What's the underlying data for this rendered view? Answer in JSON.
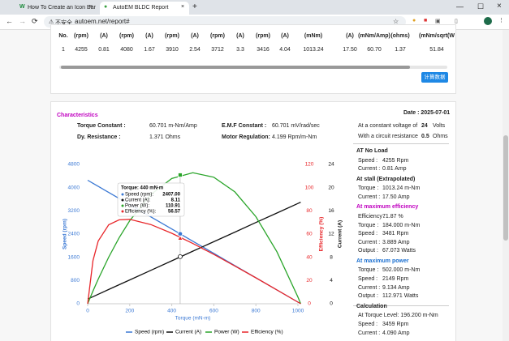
{
  "browser": {
    "tabs": [
      "How To Create an Icon Bar",
      "AutoEM BLDC Report"
    ],
    "security": "不安全",
    "url": "autoem.net/report#"
  },
  "table": {
    "header": [
      "No.",
      "(rpm)",
      "(A)",
      "(rpm)",
      "(A)",
      "(rpm)",
      "(A)",
      "(rpm)",
      "(A)",
      "(rpm)",
      "(A)",
      "(mNm)",
      "(A)",
      "(mNm/Amp)",
      "(ohms)",
      "(mNm/sqrt(W"
    ],
    "rows": [
      [
        "1",
        "4255",
        "0.81",
        "4080",
        "1.67",
        "3910",
        "2.54",
        "3712",
        "3.3",
        "3416",
        "4.04",
        "1013.24",
        "17.50",
        "60.70",
        "1.37",
        "51.84"
      ]
    ]
  },
  "button": "计算数据",
  "characteristics": {
    "title": "Characteristics",
    "date": "Date : 2025-07-01",
    "props": [
      [
        "Torque Constant :",
        "60.701 m-Nm/Amp",
        "E.M.F Constant :",
        "60.701 mV/rad/sec"
      ],
      [
        "Dy. Resistance :",
        "1.371 Ohms",
        "Motor Regulation:",
        "4.199 Rpm/m-Nm"
      ]
    ]
  },
  "summary": {
    "voltage": [
      "At a constant voltage of",
      "24",
      "Volts"
    ],
    "resistance": [
      "With a circuit resistance",
      "0.5",
      "Ohms"
    ],
    "sections": [
      {
        "title": "AT No Load",
        "color": "#222222",
        "rows": [
          [
            "Speed :",
            "4255 Rpm"
          ],
          [
            "Current :",
            "0.81 Amp"
          ]
        ]
      },
      {
        "title": "At stall (Extrapolated)",
        "color": "#222222",
        "rows": [
          [
            "Torque :",
            "1013.24 m-Nm"
          ],
          [
            "Current :",
            "17.50 Amp"
          ]
        ]
      },
      {
        "title": "At maximum efficiency",
        "color": "#c000c0",
        "rows": [
          [
            "Efficiency :",
            "71.87 %"
          ],
          [
            "Torque :",
            "184.000 m-Nm"
          ],
          [
            "Speed :",
            "3481 Rpm"
          ],
          [
            "Current :",
            "3.889 Amp"
          ],
          [
            "Output :",
            "67.073 Watts"
          ]
        ]
      },
      {
        "title": "At maximum power",
        "color": "#1a6fd0",
        "rows": [
          [
            "Torque :",
            "502.000 m-Nm"
          ],
          [
            "Speed :",
            "2149 Rpm"
          ],
          [
            "Current :",
            "9.134 Amp"
          ],
          [
            "Output :",
            "112.971 Watts"
          ]
        ]
      },
      {
        "title": "Calculation",
        "color": "#222222",
        "note": "At Torque Level: 196.200 m-Nm",
        "rows": [
          [
            "Speed :",
            "3459 Rpm"
          ],
          [
            "Current :",
            "4.090 Amp"
          ]
        ]
      }
    ]
  },
  "chart_data": {
    "type": "line",
    "xlabel": "Torque (mN-m)",
    "ylabel": "Speed (rpm)",
    "y2label": "Efficiency (%)",
    "y3label": "Current (A)",
    "x": [
      0,
      25,
      50,
      100,
      150,
      200,
      300,
      400,
      500,
      600,
      700,
      800,
      900,
      1000,
      1013.24
    ],
    "xlim": [
      0,
      1000
    ],
    "xticks": [
      0,
      200,
      400,
      600,
      800,
      1000
    ],
    "ylim": [
      0,
      4800
    ],
    "yticks": [
      0,
      800,
      1600,
      2400,
      3200,
      4000,
      4800
    ],
    "y2lim": [
      0,
      120
    ],
    "y2ticks": [
      0,
      20,
      40,
      60,
      80,
      100,
      120
    ],
    "y3lim": [
      0,
      24
    ],
    "y3ticks": [
      0,
      4,
      8,
      12,
      16,
      20,
      24
    ],
    "grid": false,
    "series": [
      {
        "name": "Speed (rpm)",
        "color": "#3a78d4",
        "axis": "y",
        "values": [
          4255,
          4150,
          4045,
          3835,
          3625,
          3415,
          2995,
          2575,
          2155,
          1735,
          1315,
          895,
          475,
          55,
          0
        ]
      },
      {
        "name": "Current (A)",
        "color": "#111111",
        "axis": "y3",
        "values": [
          0.81,
          1.22,
          1.63,
          2.46,
          3.28,
          4.1,
          5.75,
          7.4,
          9.05,
          10.69,
          12.34,
          13.99,
          15.63,
          17.28,
          17.5
        ]
      },
      {
        "name": "Power (W)",
        "color": "#2aa52a",
        "axis": "y2",
        "values": [
          0,
          10.86,
          21.18,
          40.15,
          56.93,
          71.51,
          94.07,
          107.84,
          112.81,
          108.99,
          96.38,
          74.97,
          44.76,
          5.76,
          0
        ]
      },
      {
        "name": "Efficiency (%)",
        "color": "#e8262a",
        "axis": "y2",
        "values": [
          0,
          37.1,
          54.1,
          68,
          72.3,
          72.7,
          68.2,
          60.7,
          51.9,
          42.5,
          32.5,
          22.3,
          11.9,
          1.4,
          0
        ]
      }
    ],
    "tooltip": {
      "title": "Torque: 440 mN·m",
      "x": 440,
      "labels": [
        "Speed (rpm):",
        "Current (A):",
        "Power (W):",
        "Efficiency (%):"
      ],
      "values": [
        2407,
        8.11,
        110.91,
        56.57
      ],
      "value_labels": [
        "2407.00",
        "8.11",
        "110.91",
        "56.57"
      ]
    }
  }
}
